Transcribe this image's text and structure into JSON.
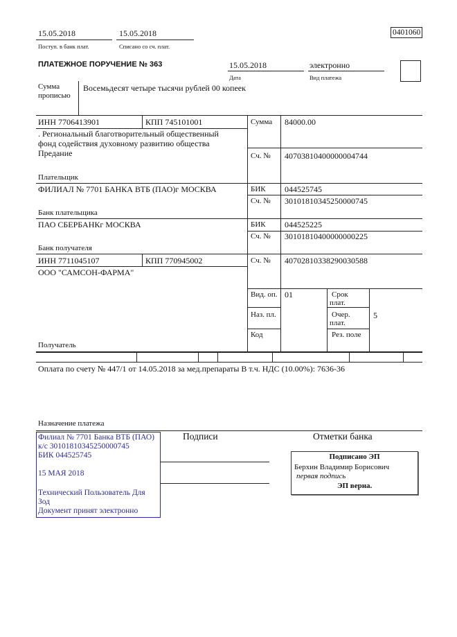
{
  "header": {
    "date_received": "15.05.2018",
    "label_received": "Поступ. в банк плат.",
    "date_debited": "15.05.2018",
    "label_debited": "Списано со сч. плат.",
    "form_code": "0401060"
  },
  "order": {
    "title": "ПЛАТЕЖНОЕ ПОРУЧЕНИЕ № 363",
    "date": "15.05.2018",
    "date_label": "Дата",
    "payment_type": "электронно",
    "payment_type_label": "Вид платежа"
  },
  "amount_words": {
    "label_line1": "Сумма",
    "label_line2": "прописью",
    "value": "Восемьдесят четыре тысячи рублей 00 копеек"
  },
  "payer": {
    "inn": "ИНН 7706413901",
    "kpp": "КПП 745101001",
    "name_lines": [
      ". Региональный благотворительный общественный",
      "фонд содействия духовному развитию общества",
      "Предание"
    ],
    "label": "Плательщик",
    "amount_label": "Сумма",
    "amount": "84000.00",
    "account_label": "Сч. №",
    "account": "40703810400000004744"
  },
  "payer_bank": {
    "name": "ФИЛИАЛ № 7701 БАНКА ВТБ (ПАО)г МОСКВА",
    "label": "Банк плательщика",
    "bik_label": "БИК",
    "bik": "044525745",
    "account_label": "Сч. №",
    "account": "30101810345250000745"
  },
  "payee_bank": {
    "name": "ПАО СБЕРБАНКг МОСКВА",
    "label": "Банк получателя",
    "bik_label": "БИК",
    "bik": "044525225",
    "account_label": "Сч. №",
    "account": "30101810400000000225"
  },
  "payee": {
    "inn": "ИНН 7711045107",
    "kpp": "КПП 770945002",
    "name": "ООО \"САМСОН-ФАРМА\"",
    "label": "Получатель",
    "account_label": "Сч. №",
    "account": "40702810338290030588"
  },
  "codes": {
    "op_type_label": "Вид. оп.",
    "op_type": "01",
    "purpose_code_label": "Наз. пл.",
    "code_label": "Код",
    "term_label_1": "Срок",
    "term_label_2": "плат.",
    "priority_label_1": "Очер.",
    "priority_label_2": "плат.",
    "priority": "5",
    "reserved_label": "Рез. поле"
  },
  "purpose": {
    "text": "Оплата по счету № 447/1 от 14.05.2018 за мед.препараты В т.ч. НДС (10.00%): 7636-36",
    "label": "Назначение платежа"
  },
  "bank_stamp": {
    "lines": [
      "Филиал № 7701 Банка ВТБ (ПАО)",
      "к/с 30101810345250000745",
      "БИК 044525745",
      "15 МАЯ 2018",
      "Технический Пользователь Для",
      "Зод",
      "Документ принят электронно"
    ],
    "color": "#2a2aa0"
  },
  "signatures": {
    "label": "Подписи"
  },
  "bank_marks": {
    "label": "Отметки банка",
    "signed": "Подписано ЭП",
    "signer": "Берхин Владимир Борисович",
    "role": "первая подпись",
    "verified": "ЭП верна."
  }
}
